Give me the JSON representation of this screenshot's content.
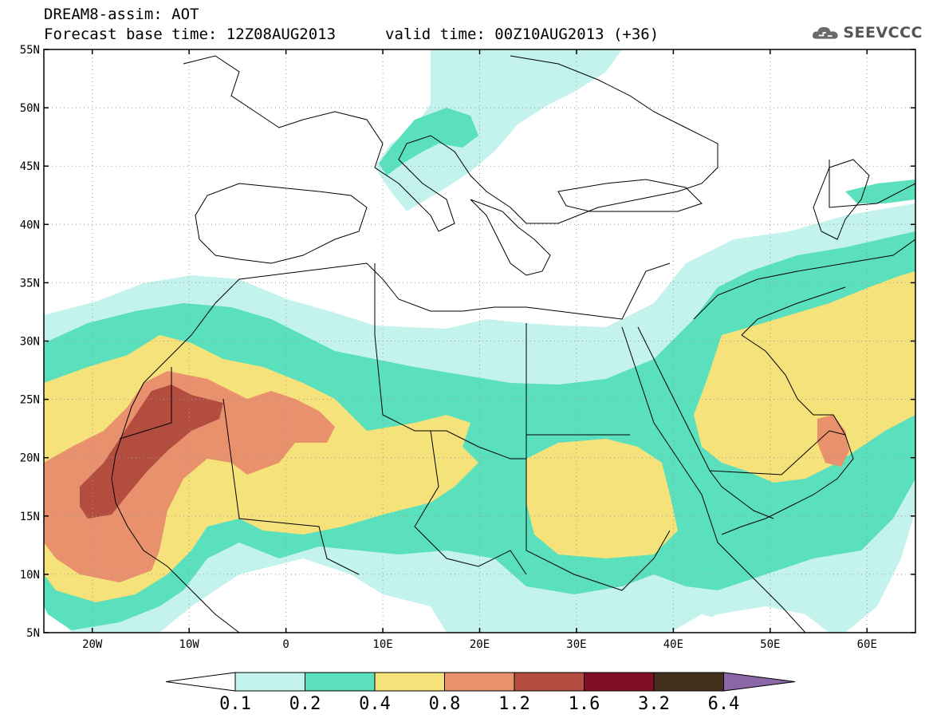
{
  "title": {
    "line1": "DREAM8-assim: AOT",
    "line2": "Forecast base time: 12Z08AUG2013",
    "valid": "valid time: 00Z10AUG2013 (+36)"
  },
  "logo": {
    "text": "SEEVCCC",
    "icon": "cloud-icon"
  },
  "map": {
    "lon_range": [
      -25,
      65
    ],
    "lat_range": [
      5,
      55
    ],
    "grid": "dotted",
    "lat_labels": [
      "55N",
      "50N",
      "45N",
      "40N",
      "35N",
      "30N",
      "25N",
      "20N",
      "15N",
      "10N",
      "5N"
    ],
    "lon_labels": [
      "20W",
      "10W",
      "0",
      "10E",
      "20E",
      "30E",
      "40E",
      "50E",
      "60E"
    ]
  },
  "colorbar": {
    "labels": [
      "0.1",
      "0.2",
      "0.4",
      "0.8",
      "1.2",
      "1.6",
      "3.2",
      "6.4"
    ],
    "colors": [
      "#c3f3ec",
      "#5ae0bd",
      "#f6e27a",
      "#e9906c",
      "#b34d3f",
      "#7e0f24",
      "#43301c",
      "#8c67a8"
    ],
    "low_color": "#ffffff"
  }
}
